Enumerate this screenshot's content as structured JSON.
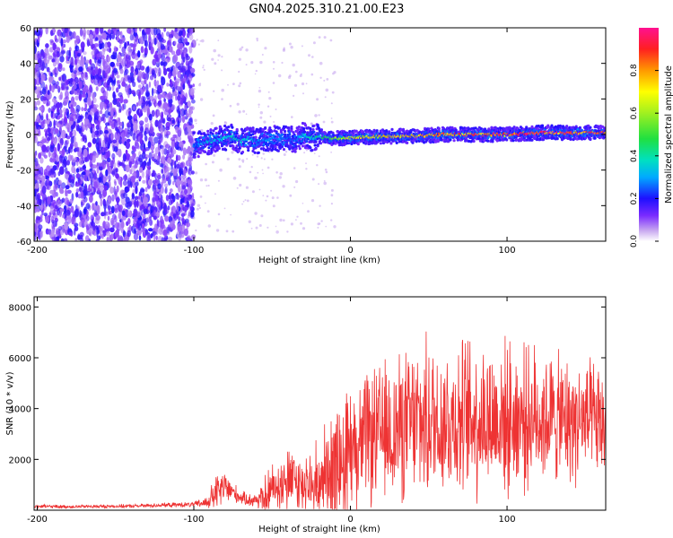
{
  "title": "GN04.2025.310.21.00.E23",
  "chart_data": [
    {
      "type": "heatmap",
      "name": "spectrogram",
      "xlabel": "Height of straight line (km)",
      "ylabel": "Frequency (Hz)",
      "xlim": [
        -202,
        163
      ],
      "ylim": [
        -60,
        60
      ],
      "xticks": [
        "-200",
        "-100",
        "0",
        "100"
      ],
      "xtick_values": [
        -200,
        -100,
        0,
        100
      ],
      "yticks": [
        "-60",
        "-40",
        "-20",
        "0",
        "20",
        "40",
        "60"
      ],
      "ytick_values": [
        -60,
        -40,
        -20,
        0,
        20,
        40,
        60
      ],
      "noise_region_x": [
        -202,
        -100
      ],
      "ridge": {
        "x": [
          -100,
          -95,
          -90,
          -85,
          -80,
          -75,
          -70,
          -65,
          -60,
          -55,
          -50,
          -45,
          -40,
          -35,
          -30,
          -25,
          -20,
          -15,
          -10,
          -5,
          0,
          20,
          40,
          60,
          80,
          100,
          120,
          140,
          163
        ],
        "center_hz": [
          -6,
          -5,
          -4,
          -3,
          -2,
          -1,
          -4,
          -2,
          -4,
          -3,
          -2,
          -3,
          -1,
          -4,
          0,
          -2,
          -1,
          -2,
          -2,
          -2,
          -2,
          -1,
          -1,
          0,
          0,
          0,
          1,
          1,
          1
        ],
        "amplitude": [
          0.25,
          0.3,
          0.35,
          0.3,
          0.35,
          0.4,
          0.35,
          0.35,
          0.3,
          0.3,
          0.3,
          0.3,
          0.25,
          0.3,
          0.35,
          0.4,
          0.45,
          0.5,
          0.6,
          0.65,
          0.7,
          0.75,
          0.8,
          0.85,
          0.9,
          0.9,
          0.95,
          0.9,
          0.9
        ]
      }
    },
    {
      "type": "colorbar",
      "name": "spectral-amplitude-colorbar",
      "label": "Normalized spectral amplitude",
      "range": [
        0,
        1
      ],
      "ticks": [
        "0.0",
        "0.2",
        "0.4",
        "0.6",
        "0.8"
      ],
      "tick_values": [
        0,
        0.2,
        0.4,
        0.6,
        0.8
      ]
    },
    {
      "type": "line",
      "name": "snr-plot",
      "xlabel": "Height of straight line (km)",
      "ylabel": "SNR (10 * v/v)",
      "xlim": [
        -202,
        163
      ],
      "ylim": [
        0,
        8400
      ],
      "xticks": [
        "-200",
        "-100",
        "0",
        "100"
      ],
      "xtick_values": [
        -200,
        -100,
        0,
        100
      ],
      "yticks": [
        "2000",
        "4000",
        "6000",
        "8000"
      ],
      "ytick_values": [
        2000,
        4000,
        6000,
        8000
      ],
      "color": "#ee3333",
      "envelope": {
        "x": [
          -202,
          -180,
          -160,
          -140,
          -120,
          -100,
          -92,
          -85,
          -80,
          -75,
          -70,
          -65,
          -60,
          -55,
          -50,
          -45,
          -40,
          -35,
          -30,
          -25,
          -20,
          -15,
          -10,
          -5,
          0,
          5,
          10,
          20,
          30,
          40,
          50,
          60,
          70,
          80,
          90,
          100,
          110,
          120,
          130,
          140,
          150,
          163
        ],
        "base": [
          150,
          140,
          150,
          160,
          200,
          220,
          300,
          700,
          900,
          700,
          500,
          400,
          400,
          600,
          900,
          1000,
          1200,
          1100,
          900,
          1000,
          1300,
          1600,
          1800,
          2000,
          2500,
          2600,
          2800,
          3000,
          3200,
          3400,
          3500,
          3600,
          3600,
          3700,
          3600,
          3600,
          3600,
          3700,
          3600,
          3500,
          3500,
          3300
        ],
        "amp": [
          80,
          80,
          80,
          80,
          100,
          120,
          300,
          900,
          800,
          500,
          300,
          300,
          400,
          900,
          1100,
          1300,
          1500,
          1500,
          1200,
          1600,
          1900,
          2200,
          2500,
          2600,
          2800,
          2900,
          3000,
          3200,
          3400,
          3500,
          3700,
          3600,
          3600,
          3800,
          3600,
          3500,
          3300,
          3200,
          3000,
          2900,
          2800,
          2600
        ]
      }
    }
  ]
}
